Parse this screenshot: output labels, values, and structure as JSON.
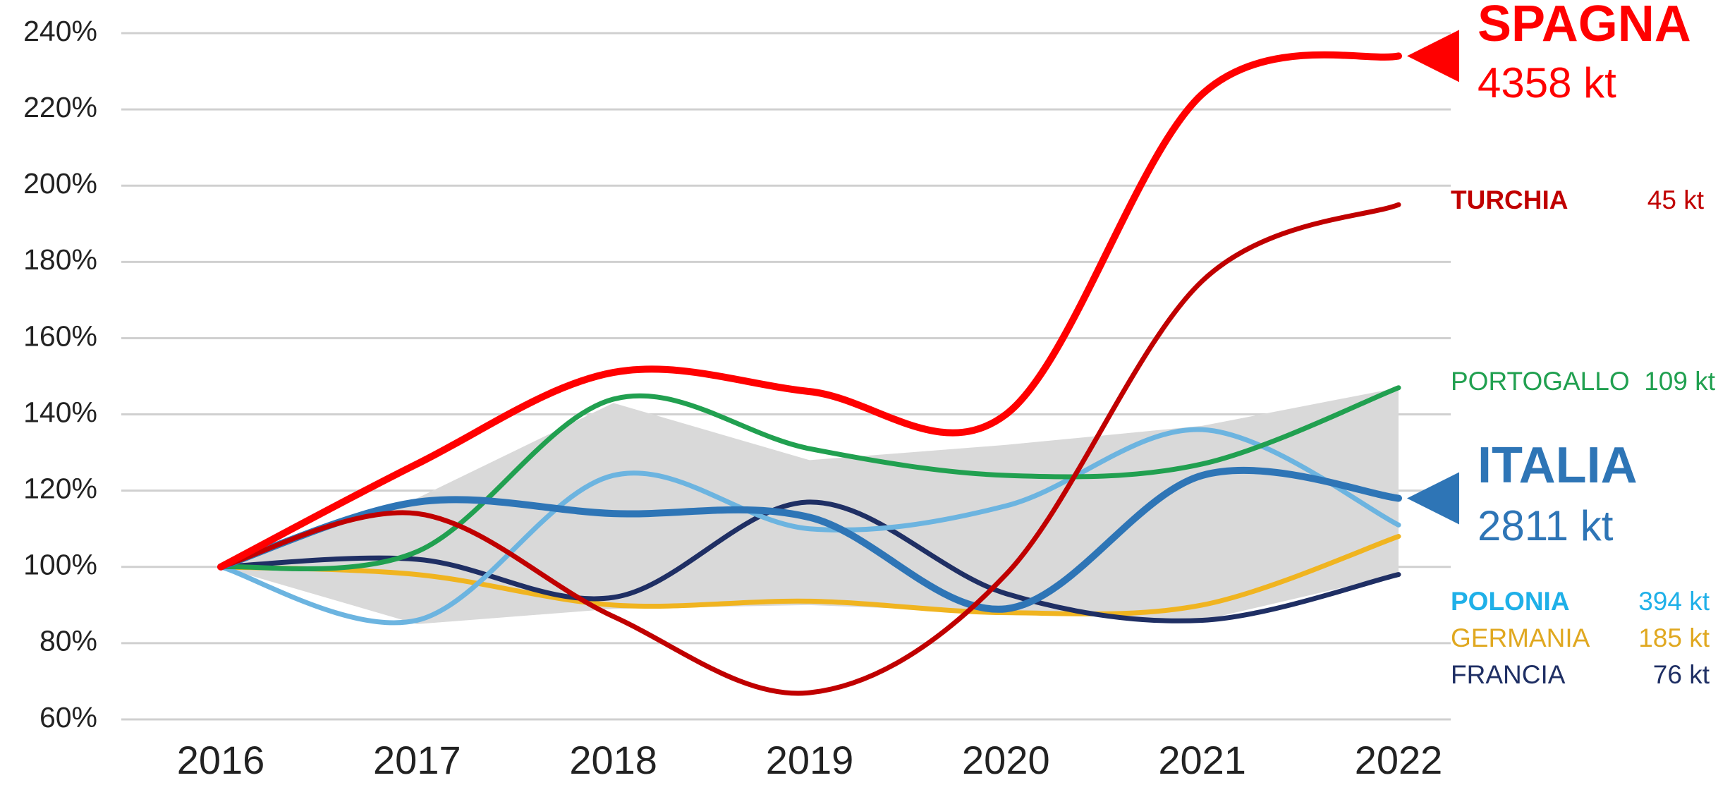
{
  "chart_data": {
    "type": "line",
    "categories": [
      "2016",
      "2017",
      "2018",
      "2019",
      "2020",
      "2021",
      "2022"
    ],
    "ylim": [
      60,
      240
    ],
    "yticks": [
      {
        "value": 60,
        "label": "60%"
      },
      {
        "value": 80,
        "label": "80%"
      },
      {
        "value": 100,
        "label": "100%"
      },
      {
        "value": 120,
        "label": "120%"
      },
      {
        "value": 140,
        "label": "140%"
      },
      {
        "value": 160,
        "label": "160%"
      },
      {
        "value": 180,
        "label": "180%"
      },
      {
        "value": 200,
        "label": "200%"
      },
      {
        "value": 220,
        "label": "220%"
      },
      {
        "value": 240,
        "label": "240%"
      }
    ],
    "grid": true,
    "band": {
      "color": "#d9d9d9",
      "upper": [
        100,
        118,
        143,
        128,
        132,
        137,
        147
      ],
      "lower": [
        100,
        85,
        89,
        90,
        88,
        86,
        98
      ]
    },
    "series": [
      {
        "name": "SPAGNA",
        "volume": "4358 kt",
        "color": "#ff0000",
        "highlight": true,
        "values": [
          100,
          127,
          151,
          146,
          140,
          224,
          234
        ]
      },
      {
        "name": "TURCHIA",
        "volume": "45 kt",
        "color": "#c00000",
        "bold": true,
        "values": [
          100,
          114,
          87,
          67,
          98,
          175,
          195
        ]
      },
      {
        "name": "PORTOGALLO",
        "volume": "109 kt",
        "color": "#21a050",
        "values": [
          100,
          104,
          144,
          131,
          124,
          127,
          147
        ]
      },
      {
        "name": "ITALIA",
        "volume": "2811 kt",
        "color": "#2e75b6",
        "highlight": true,
        "values": [
          100,
          117,
          114,
          113,
          89,
          124,
          118
        ]
      },
      {
        "name": "POLONIA",
        "volume": "394 kt",
        "color": "#1fb0e8",
        "line_color": "#6cb4e0",
        "bold": true,
        "values": [
          100,
          86,
          124,
          110,
          116,
          136,
          111
        ]
      },
      {
        "name": "GERMANIA",
        "volume": "185 kt",
        "color": "#e0a820",
        "line_color": "#f0b420",
        "values": [
          100,
          98,
          90,
          91,
          88,
          90,
          108
        ]
      },
      {
        "name": "FRANCIA",
        "volume": "76 kt",
        "color": "#1f2f64",
        "values": [
          100,
          102,
          92,
          117,
          93,
          86,
          98
        ]
      }
    ]
  }
}
